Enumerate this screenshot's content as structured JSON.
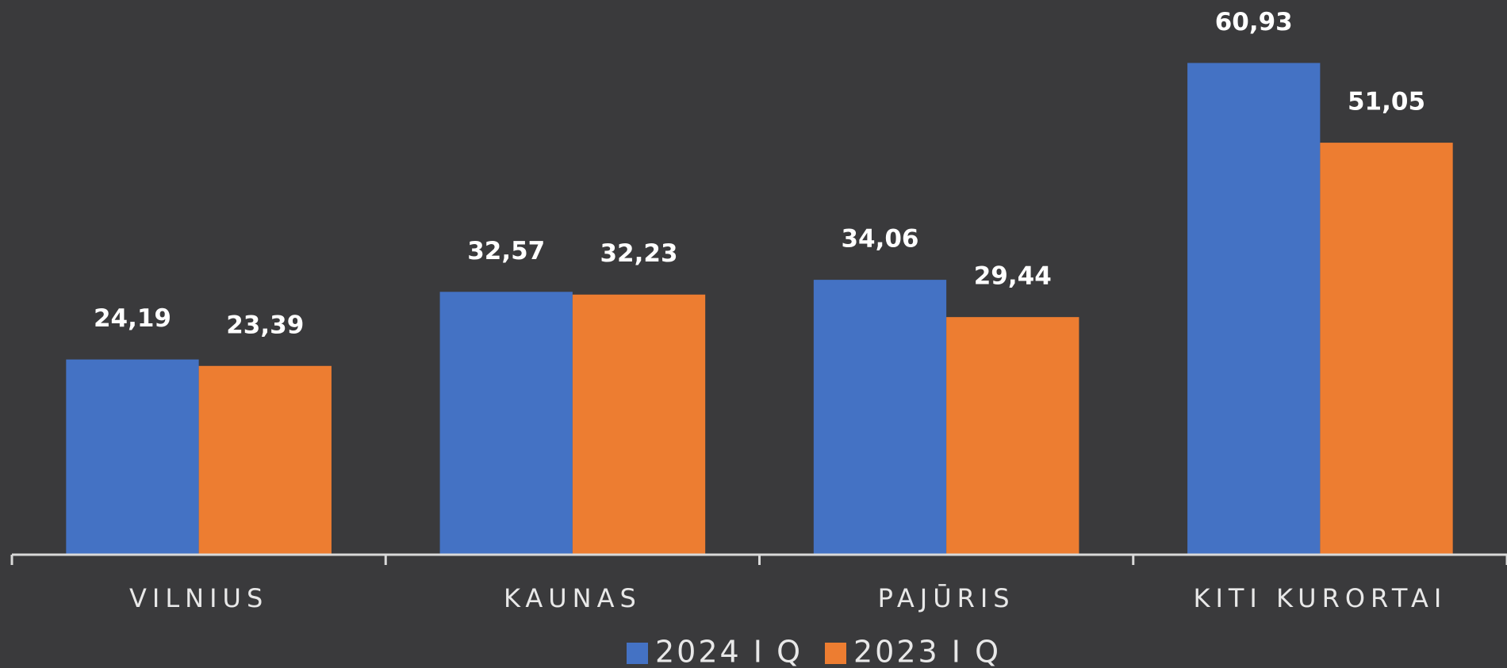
{
  "chart_data": {
    "type": "bar",
    "categories": [
      "VILNIUS",
      "KAUNAS",
      "PAJŪRIS",
      "KITI KURORTAI"
    ],
    "series": [
      {
        "name": "2024 I Q",
        "color": "#4472c4",
        "values": [
          24.19,
          32.57,
          34.06,
          60.93
        ],
        "value_labels": [
          "24,19",
          "32,57",
          "34,06",
          "60,93"
        ]
      },
      {
        "name": "2023 I Q",
        "color": "#ed7d31",
        "values": [
          23.39,
          32.23,
          29.44,
          51.05
        ],
        "value_labels": [
          "23,39",
          "32,23",
          "29,44",
          "51,05"
        ]
      }
    ],
    "ylim": [
      0,
      65
    ],
    "legend": "bottom"
  }
}
